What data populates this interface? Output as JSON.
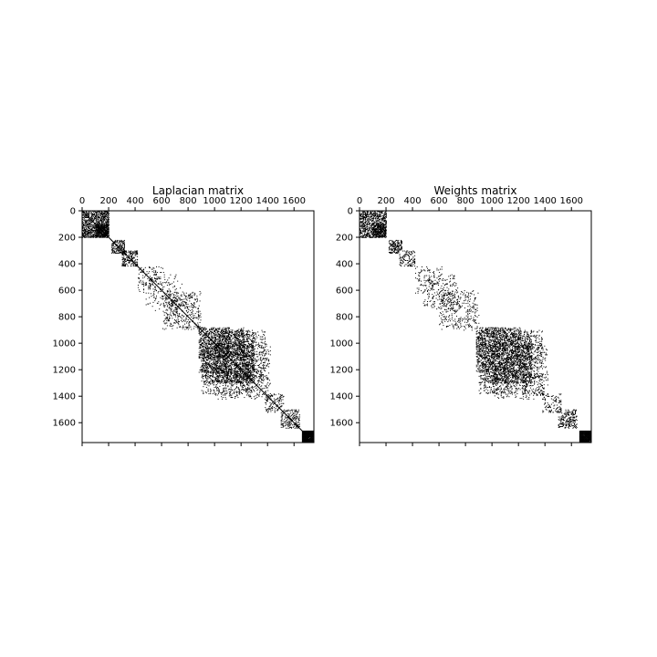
{
  "chart_data": [
    {
      "type": "heatmap",
      "subtype": "sparsity-pattern",
      "title": "Laplacian matrix",
      "x_ticks": [
        0,
        200,
        400,
        600,
        800,
        1000,
        1200,
        1400,
        1600
      ],
      "y_ticks": [
        0,
        200,
        400,
        600,
        800,
        1000,
        1200,
        1400,
        1600
      ],
      "xlim": [
        0,
        1750
      ],
      "ylim": [
        1750,
        0
      ],
      "x_axis_position": "top",
      "diagonal_present": true,
      "blocks": [
        {
          "x": [
            0,
            200
          ],
          "y": [
            0,
            200
          ],
          "density": 0.35
        },
        {
          "x": [
            100,
            200
          ],
          "y": [
            100,
            200
          ],
          "density": 0.55
        },
        {
          "x": [
            220,
            320
          ],
          "y": [
            220,
            320
          ],
          "density": 0.3
        },
        {
          "x": [
            300,
            420
          ],
          "y": [
            300,
            420
          ],
          "density": 0.22
        },
        {
          "x": [
            420,
            560
          ],
          "y": [
            420,
            620
          ],
          "density": 0.06
        },
        {
          "x": [
            520,
            720
          ],
          "y": [
            480,
            760
          ],
          "density": 0.07
        },
        {
          "x": [
            640,
            900
          ],
          "y": [
            600,
            880
          ],
          "density": 0.09
        },
        {
          "x": [
            880,
            1120
          ],
          "y": [
            880,
            1220
          ],
          "density": 0.22
        },
        {
          "x": [
            1000,
            1300
          ],
          "y": [
            900,
            1300
          ],
          "density": 0.2
        },
        {
          "x": [
            900,
            1260
          ],
          "y": [
            1150,
            1380
          ],
          "density": 0.14
        },
        {
          "x": [
            1220,
            1420
          ],
          "y": [
            1000,
            1400
          ],
          "density": 0.1
        },
        {
          "x": [
            1380,
            1520
          ],
          "y": [
            1380,
            1520
          ],
          "density": 0.12
        },
        {
          "x": [
            1500,
            1640
          ],
          "y": [
            1500,
            1640
          ],
          "density": 0.16
        },
        {
          "x": [
            1660,
            1750
          ],
          "y": [
            1660,
            1750
          ],
          "density": 0.95
        }
      ]
    },
    {
      "type": "heatmap",
      "subtype": "sparsity-pattern",
      "title": "Weights matrix",
      "x_ticks": [
        0,
        200,
        400,
        600,
        800,
        1000,
        1200,
        1400,
        1600
      ],
      "y_ticks": [
        0,
        200,
        400,
        600,
        800,
        1000,
        1200,
        1400,
        1600
      ],
      "xlim": [
        0,
        1750
      ],
      "ylim": [
        1750,
        0
      ],
      "x_axis_position": "top",
      "diagonal_present": false,
      "blocks": [
        {
          "x": [
            0,
            200
          ],
          "y": [
            0,
            200
          ],
          "density": 0.3
        },
        {
          "x": [
            100,
            200
          ],
          "y": [
            100,
            200
          ],
          "density": 0.4
        },
        {
          "x": [
            220,
            320
          ],
          "y": [
            220,
            320
          ],
          "density": 0.25
        },
        {
          "x": [
            300,
            420
          ],
          "y": [
            300,
            420
          ],
          "density": 0.18
        },
        {
          "x": [
            420,
            560
          ],
          "y": [
            420,
            620
          ],
          "density": 0.06
        },
        {
          "x": [
            520,
            720
          ],
          "y": [
            480,
            760
          ],
          "density": 0.07
        },
        {
          "x": [
            640,
            900
          ],
          "y": [
            600,
            880
          ],
          "density": 0.08
        },
        {
          "x": [
            880,
            1120
          ],
          "y": [
            880,
            1220
          ],
          "density": 0.22
        },
        {
          "x": [
            1000,
            1300
          ],
          "y": [
            900,
            1300
          ],
          "density": 0.2
        },
        {
          "x": [
            900,
            1260
          ],
          "y": [
            1150,
            1380
          ],
          "density": 0.14
        },
        {
          "x": [
            1220,
            1420
          ],
          "y": [
            1000,
            1400
          ],
          "density": 0.1
        },
        {
          "x": [
            1380,
            1520
          ],
          "y": [
            1380,
            1520
          ],
          "density": 0.1
        },
        {
          "x": [
            1500,
            1640
          ],
          "y": [
            1500,
            1640
          ],
          "density": 0.14
        },
        {
          "x": [
            1660,
            1750
          ],
          "y": [
            1660,
            1750
          ],
          "density": 0.9
        }
      ]
    }
  ]
}
